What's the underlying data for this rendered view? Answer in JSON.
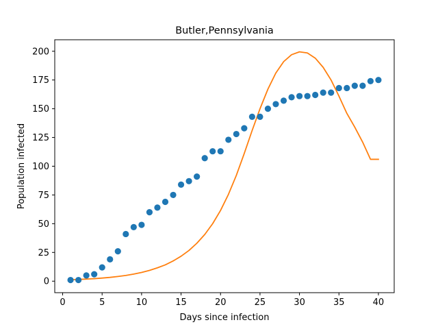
{
  "chart_data": {
    "type": "scatter",
    "title": "Butler,Pennsylvania",
    "xlabel": "Days since infection",
    "ylabel": "Population infected",
    "xlim": [
      -1,
      42
    ],
    "ylim": [
      -10,
      210
    ],
    "xticks": [
      0,
      5,
      10,
      15,
      20,
      25,
      30,
      35,
      40
    ],
    "yticks": [
      0,
      25,
      50,
      75,
      100,
      125,
      150,
      175,
      200
    ],
    "grid": false,
    "legend": "none",
    "colors": {
      "observed": "#1f77b4",
      "model": "#ff7f0e",
      "axes": "#000000"
    },
    "series": [
      {
        "kind": "scatter",
        "x": [
          1,
          2,
          3,
          4,
          5,
          6,
          7,
          8,
          9,
          10,
          11,
          12,
          13,
          14,
          15,
          16,
          17,
          18,
          19,
          20,
          21,
          22,
          23,
          24,
          25,
          26,
          27,
          28,
          29,
          30,
          31,
          32,
          33,
          34,
          35,
          36,
          37,
          38,
          39,
          40
        ],
        "values": [
          1,
          1,
          5,
          6,
          12,
          19,
          26,
          41,
          47,
          49,
          60,
          64,
          69,
          75,
          84,
          87,
          91,
          107,
          113,
          113,
          123,
          128,
          133,
          143,
          143,
          150,
          154,
          157,
          160,
          161,
          161,
          162,
          164,
          164,
          168,
          168,
          170,
          170,
          174,
          175
        ]
      },
      {
        "kind": "line",
        "x": [
          1,
          2,
          3,
          4,
          5,
          6,
          7,
          8,
          9,
          10,
          11,
          12,
          13,
          14,
          15,
          16,
          17,
          18,
          19,
          20,
          21,
          22,
          23,
          24,
          25,
          26,
          27,
          28,
          29,
          30,
          31,
          32,
          33,
          34,
          35,
          36,
          37,
          38,
          39,
          40
        ],
        "values": [
          1.2,
          1.5,
          1.8,
          2.2,
          2.7,
          3.3,
          4.1,
          5.0,
          6.2,
          7.6,
          9.4,
          11.6,
          14.2,
          17.6,
          21.7,
          26.7,
          33.0,
          40.6,
          50.0,
          61.5,
          75.5,
          92.0,
          111.0,
          131.0,
          150.0,
          167.0,
          181.0,
          191.0,
          197.0,
          199.5,
          198.5,
          194.0,
          186.0,
          175.0,
          161.0,
          146.0,
          134.0,
          121.0,
          106.0,
          106.0
        ]
      }
    ]
  }
}
